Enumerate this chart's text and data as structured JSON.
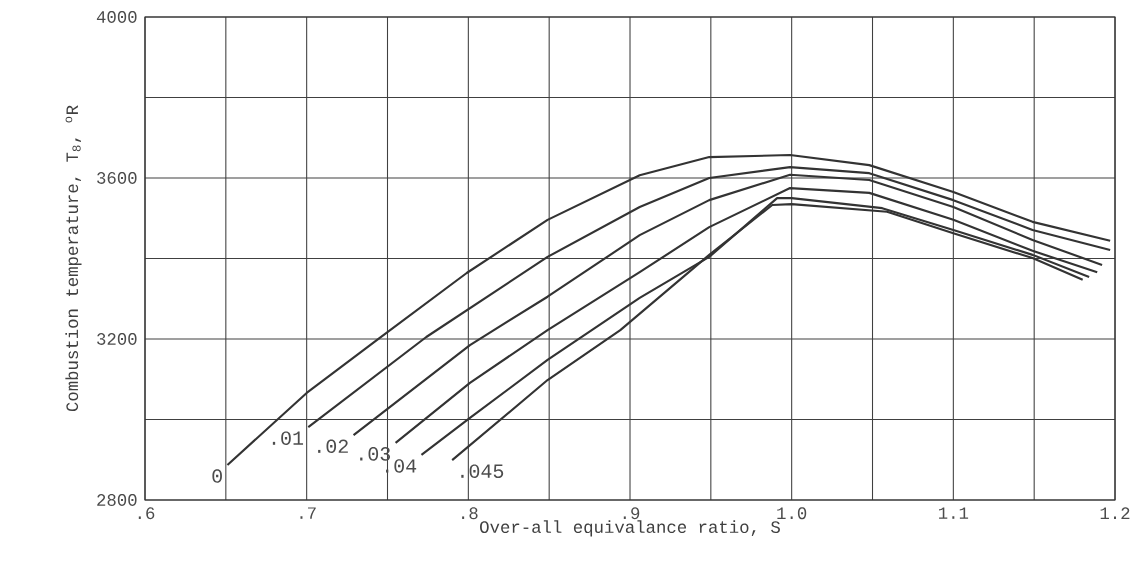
{
  "chart_data": {
    "type": "line",
    "xlabel": "Over-all equivalance ratio, S",
    "ylabel": "Combustion temperature, T$_{8}$, $^{o}$R",
    "xlim": [
      0.6,
      1.2
    ],
    "xticks": [
      {
        "value": 0.6,
        "label": ".6"
      },
      {
        "value": 0.65,
        "label": null
      },
      {
        "value": 0.7,
        "label": ".7"
      },
      {
        "value": 0.75,
        "label": null
      },
      {
        "value": 0.8,
        "label": ".8"
      },
      {
        "value": 0.85,
        "label": null
      },
      {
        "value": 0.9,
        "label": ".9"
      },
      {
        "value": 0.95,
        "label": null
      },
      {
        "value": 1.0,
        "label": "1.0"
      },
      {
        "value": 1.05,
        "label": null
      },
      {
        "value": 1.1,
        "label": "1.1"
      },
      {
        "value": 1.15,
        "label": null
      },
      {
        "value": 1.2,
        "label": "1.2"
      }
    ],
    "ylim": [
      2800,
      4000
    ],
    "yticks": [
      2800,
      {
        "value": 3000,
        "label": null
      },
      3200,
      {
        "value": 3400,
        "label": null
      },
      3600,
      {
        "value": 3800,
        "label": null
      },
      4000
    ],
    "grid": true,
    "marker": "none",
    "line_style": "solid",
    "series": [
      {
        "name": "0",
        "color": "#333333",
        "x": [
          0.651,
          0.7,
          0.745,
          0.799,
          0.849,
          0.906,
          0.949,
          0.999,
          1.048,
          1.1,
          1.149,
          1.197
        ],
        "values": [
          2887,
          3066,
          3202,
          3364,
          3496,
          3607,
          3652,
          3657,
          3632,
          3565,
          3491,
          3444
        ]
      },
      {
        "name": ".01",
        "color": "#333333",
        "x": [
          0.701,
          0.774,
          0.849,
          0.906,
          0.949,
          0.999,
          1.048,
          1.1,
          1.149,
          1.197
        ],
        "values": [
          2981,
          3205,
          3404,
          3528,
          3600,
          3627,
          3612,
          3545,
          3471,
          3421
        ]
      },
      {
        "name": ".02",
        "color": "#333333",
        "x": [
          0.729,
          0.801,
          0.849,
          0.906,
          0.949,
          0.999,
          1.048,
          1.1,
          1.149,
          1.192
        ],
        "values": [
          2961,
          3185,
          3305,
          3458,
          3545,
          3608,
          3595,
          3528,
          3446,
          3384
        ]
      },
      {
        "name": ".03",
        "color": "#333333",
        "x": [
          0.755,
          0.801,
          0.849,
          0.906,
          0.949,
          0.999,
          1.048,
          1.1,
          1.149,
          1.189
        ],
        "values": [
          2942,
          3091,
          3222,
          3366,
          3478,
          3575,
          3563,
          3496,
          3419,
          3366
        ]
      },
      {
        "name": ".04",
        "color": "#333333",
        "x": [
          0.771,
          0.801,
          0.849,
          0.906,
          0.949,
          0.991,
          1.0,
          1.056,
          1.1,
          1.149,
          1.184
        ],
        "values": [
          2912,
          3004,
          3148,
          3302,
          3404,
          3550,
          3550,
          3525,
          3471,
          3409,
          3354
        ]
      },
      {
        "name": ".045",
        "color": "#333333",
        "x": [
          0.79,
          0.849,
          0.894,
          0.949,
          0.988,
          1.0,
          1.059,
          1.1,
          1.149,
          1.18
        ],
        "values": [
          2899,
          3098,
          3222,
          3409,
          3533,
          3535,
          3516,
          3463,
          3401,
          3347
        ]
      }
    ]
  }
}
